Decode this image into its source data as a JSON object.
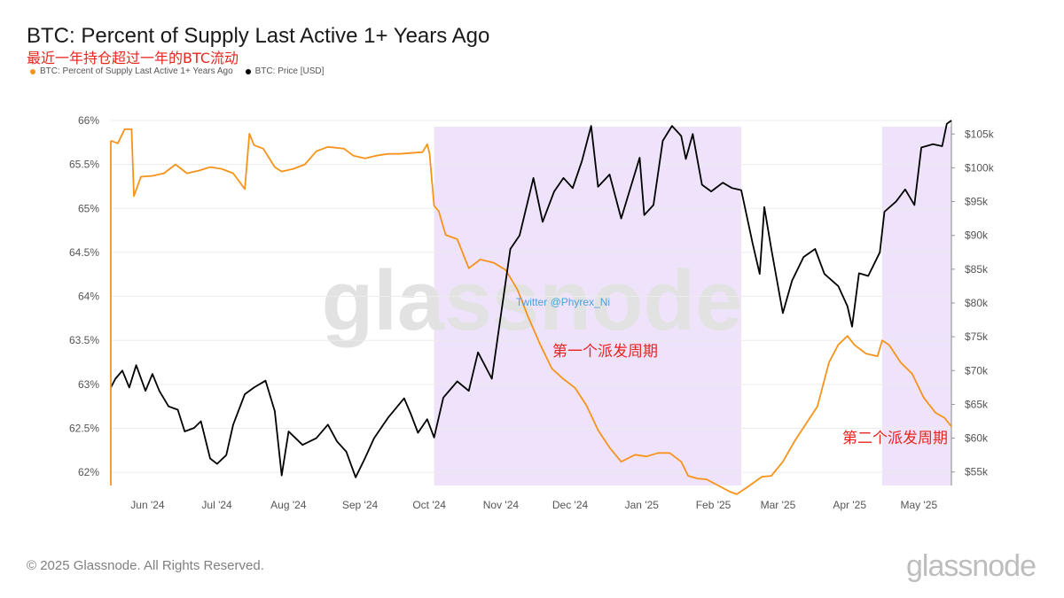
{
  "title": "BTC: Percent of Supply Last Active 1+ Years Ago",
  "subtitle": "最近一年持仓超过一年的BTC流动",
  "legend": [
    {
      "label": "BTC: Percent of Supply Last Active 1+ Years Ago",
      "color": "#f7931a"
    },
    {
      "label": "BTC: Price [USD]",
      "color": "#000000"
    }
  ],
  "watermark": "glassnode",
  "twitter_handle": "Twitter @Phyrex_Ni",
  "annotations": {
    "first_cycle": "第一个派发周期",
    "second_cycle": "第二个派发周期"
  },
  "footer": "© 2025 Glassnode. All Rights Reserved.",
  "brand": "glassnode",
  "colors": {
    "supply": "#f7931a",
    "price": "#000000",
    "shade": "#efe3fc",
    "annotation": "#e8251e",
    "twitter": "#4aa3df"
  },
  "chart_data": {
    "type": "line",
    "x_ticks": [
      "Jun '24",
      "Jul '24",
      "Aug '24",
      "Sep '24",
      "Oct '24",
      "Nov '24",
      "Dec '24",
      "Jan '25",
      "Feb '25",
      "Mar '25",
      "Apr '25",
      "May '25"
    ],
    "x_range": [
      "2024-05-23",
      "2025-05-22"
    ],
    "left_axis": {
      "ticks": [
        "66%",
        "65.5%",
        "65%",
        "64.5%",
        "64%",
        "63.5%",
        "63%",
        "62.5%",
        "62%"
      ],
      "range": [
        61.85,
        66
      ]
    },
    "right_axis": {
      "ticks": [
        "$105k",
        "$100k",
        "$95k",
        "$90k",
        "$85k",
        "$80k",
        "$75k",
        "$70k",
        "$65k",
        "$60k",
        "$55k"
      ],
      "range": [
        53000,
        107000
      ]
    },
    "shaded_periods": [
      {
        "label": "第一个派发周期",
        "start": "2024-10-10",
        "end": "2025-02-20"
      },
      {
        "label": "第二个派发周期",
        "start": "2025-04-22",
        "end": "2025-05-22"
      }
    ],
    "series": [
      {
        "name": "BTC: Percent of Supply Last Active 1+ Years Ago",
        "axis": "left",
        "points": [
          [
            "2024-05-23",
            65.77
          ],
          [
            "2024-05-26",
            65.74
          ],
          [
            "2024-05-29",
            65.9
          ],
          [
            "2024-06-01",
            65.9
          ],
          [
            "2024-06-02",
            65.14
          ],
          [
            "2024-06-05",
            65.36
          ],
          [
            "2024-06-10",
            65.37
          ],
          [
            "2024-06-15",
            65.4
          ],
          [
            "2024-06-20",
            65.5
          ],
          [
            "2024-06-25",
            65.4
          ],
          [
            "2024-06-30",
            65.43
          ],
          [
            "2024-07-05",
            65.47
          ],
          [
            "2024-07-10",
            65.45
          ],
          [
            "2024-07-15",
            65.4
          ],
          [
            "2024-07-20",
            65.22
          ],
          [
            "2024-07-22",
            65.85
          ],
          [
            "2024-07-24",
            65.72
          ],
          [
            "2024-07-28",
            65.68
          ],
          [
            "2024-08-02",
            65.47
          ],
          [
            "2024-08-05",
            65.42
          ],
          [
            "2024-08-10",
            65.45
          ],
          [
            "2024-08-15",
            65.5
          ],
          [
            "2024-08-20",
            65.65
          ],
          [
            "2024-08-25",
            65.7
          ],
          [
            "2024-09-01",
            65.68
          ],
          [
            "2024-09-05",
            65.6
          ],
          [
            "2024-09-10",
            65.57
          ],
          [
            "2024-09-15",
            65.6
          ],
          [
            "2024-09-20",
            65.62
          ],
          [
            "2024-09-25",
            65.62
          ],
          [
            "2024-10-05",
            65.64
          ],
          [
            "2024-10-07",
            65.73
          ],
          [
            "2024-10-08",
            65.63
          ],
          [
            "2024-10-10",
            65.03
          ],
          [
            "2024-10-12",
            64.97
          ],
          [
            "2024-10-15",
            64.7
          ],
          [
            "2024-10-20",
            64.65
          ],
          [
            "2024-10-25",
            64.32
          ],
          [
            "2024-10-30",
            64.42
          ],
          [
            "2024-11-05",
            64.38
          ],
          [
            "2024-11-10",
            64.3
          ],
          [
            "2024-11-15",
            64.08
          ],
          [
            "2024-11-20",
            63.75
          ],
          [
            "2024-11-25",
            63.45
          ],
          [
            "2024-11-30",
            63.18
          ],
          [
            "2024-12-05",
            63.06
          ],
          [
            "2024-12-10",
            62.96
          ],
          [
            "2024-12-15",
            62.76
          ],
          [
            "2024-12-20",
            62.48
          ],
          [
            "2024-12-25",
            62.28
          ],
          [
            "2024-12-30",
            62.12
          ],
          [
            "2025-01-05",
            62.2
          ],
          [
            "2025-01-10",
            62.18
          ],
          [
            "2025-01-15",
            62.22
          ],
          [
            "2025-01-20",
            62.22
          ],
          [
            "2025-01-25",
            62.12
          ],
          [
            "2025-01-28",
            61.96
          ],
          [
            "2025-02-01",
            61.93
          ],
          [
            "2025-02-05",
            61.92
          ],
          [
            "2025-02-10",
            61.85
          ],
          [
            "2025-02-15",
            61.78
          ],
          [
            "2025-02-18",
            61.75
          ],
          [
            "2025-02-22",
            61.82
          ],
          [
            "2025-03-01",
            61.95
          ],
          [
            "2025-03-05",
            61.96
          ],
          [
            "2025-03-10",
            62.12
          ],
          [
            "2025-03-15",
            62.35
          ],
          [
            "2025-03-20",
            62.55
          ],
          [
            "2025-03-25",
            62.75
          ],
          [
            "2025-03-30",
            63.25
          ],
          [
            "2025-04-03",
            63.45
          ],
          [
            "2025-04-07",
            63.55
          ],
          [
            "2025-04-10",
            63.45
          ],
          [
            "2025-04-15",
            63.35
          ],
          [
            "2025-04-20",
            63.32
          ],
          [
            "2025-04-22",
            63.5
          ],
          [
            "2025-04-25",
            63.45
          ],
          [
            "2025-04-30",
            63.25
          ],
          [
            "2025-05-05",
            63.12
          ],
          [
            "2025-05-10",
            62.85
          ],
          [
            "2025-05-15",
            62.68
          ],
          [
            "2025-05-19",
            62.62
          ],
          [
            "2025-05-22",
            62.52
          ]
        ]
      },
      {
        "name": "BTC: Price [USD]",
        "axis": "right",
        "points": [
          [
            "2024-05-23",
            67500
          ],
          [
            "2024-05-25",
            68800
          ],
          [
            "2024-05-28",
            70000
          ],
          [
            "2024-05-31",
            67500
          ],
          [
            "2024-06-03",
            70800
          ],
          [
            "2024-06-07",
            67000
          ],
          [
            "2024-06-10",
            69500
          ],
          [
            "2024-06-13",
            67000
          ],
          [
            "2024-06-17",
            64700
          ],
          [
            "2024-06-21",
            64200
          ],
          [
            "2024-06-24",
            61000
          ],
          [
            "2024-06-28",
            61500
          ],
          [
            "2024-07-01",
            62500
          ],
          [
            "2024-07-05",
            57000
          ],
          [
            "2024-07-08",
            56200
          ],
          [
            "2024-07-12",
            57500
          ],
          [
            "2024-07-15",
            62000
          ],
          [
            "2024-07-20",
            66500
          ],
          [
            "2024-07-24",
            67500
          ],
          [
            "2024-07-29",
            68500
          ],
          [
            "2024-08-02",
            64000
          ],
          [
            "2024-08-05",
            54500
          ],
          [
            "2024-08-08",
            61000
          ],
          [
            "2024-08-14",
            59000
          ],
          [
            "2024-08-20",
            60000
          ],
          [
            "2024-08-25",
            62000
          ],
          [
            "2024-08-29",
            59500
          ],
          [
            "2024-09-02",
            58000
          ],
          [
            "2024-09-06",
            54200
          ],
          [
            "2024-09-10",
            57000
          ],
          [
            "2024-09-14",
            60000
          ],
          [
            "2024-09-20",
            63000
          ],
          [
            "2024-09-27",
            65900
          ],
          [
            "2024-09-30",
            63500
          ],
          [
            "2024-10-03",
            60800
          ],
          [
            "2024-10-07",
            62800
          ],
          [
            "2024-10-10",
            60100
          ],
          [
            "2024-10-14",
            66000
          ],
          [
            "2024-10-20",
            68400
          ],
          [
            "2024-10-25",
            67000
          ],
          [
            "2024-10-29",
            72700
          ],
          [
            "2024-11-04",
            68800
          ],
          [
            "2024-11-07",
            76000
          ],
          [
            "2024-11-12",
            88000
          ],
          [
            "2024-11-16",
            90000
          ],
          [
            "2024-11-22",
            98500
          ],
          [
            "2024-11-26",
            92000
          ],
          [
            "2024-12-01",
            96500
          ],
          [
            "2024-12-05",
            98500
          ],
          [
            "2024-12-09",
            97000
          ],
          [
            "2024-12-13",
            101000
          ],
          [
            "2024-12-17",
            106200
          ],
          [
            "2024-12-20",
            97200
          ],
          [
            "2024-12-25",
            99000
          ],
          [
            "2024-12-30",
            92500
          ],
          [
            "2025-01-03",
            97000
          ],
          [
            "2025-01-07",
            101500
          ],
          [
            "2025-01-09",
            93000
          ],
          [
            "2025-01-13",
            94500
          ],
          [
            "2025-01-17",
            104000
          ],
          [
            "2025-01-21",
            106200
          ],
          [
            "2025-01-25",
            104700
          ],
          [
            "2025-01-27",
            101300
          ],
          [
            "2025-01-30",
            105000
          ],
          [
            "2025-02-03",
            97500
          ],
          [
            "2025-02-07",
            96500
          ],
          [
            "2025-02-12",
            97800
          ],
          [
            "2025-02-16",
            97000
          ],
          [
            "2025-02-20",
            96700
          ],
          [
            "2025-02-25",
            88700
          ],
          [
            "2025-02-28",
            84300
          ],
          [
            "2025-03-02",
            94200
          ],
          [
            "2025-03-05",
            88000
          ],
          [
            "2025-03-10",
            78500
          ],
          [
            "2025-03-14",
            83300
          ],
          [
            "2025-03-19",
            86800
          ],
          [
            "2025-03-24",
            88000
          ],
          [
            "2025-03-28",
            84300
          ],
          [
            "2025-04-03",
            82500
          ],
          [
            "2025-04-07",
            79500
          ],
          [
            "2025-04-09",
            76500
          ],
          [
            "2025-04-12",
            84400
          ],
          [
            "2025-04-16",
            84000
          ],
          [
            "2025-04-21",
            87500
          ],
          [
            "2025-04-23",
            93500
          ],
          [
            "2025-04-28",
            95000
          ],
          [
            "2025-05-02",
            96800
          ],
          [
            "2025-05-06",
            94500
          ],
          [
            "2025-05-09",
            103000
          ],
          [
            "2025-05-14",
            103500
          ],
          [
            "2025-05-18",
            103200
          ],
          [
            "2025-05-20",
            106500
          ],
          [
            "2025-05-22",
            107000
          ]
        ]
      }
    ]
  }
}
